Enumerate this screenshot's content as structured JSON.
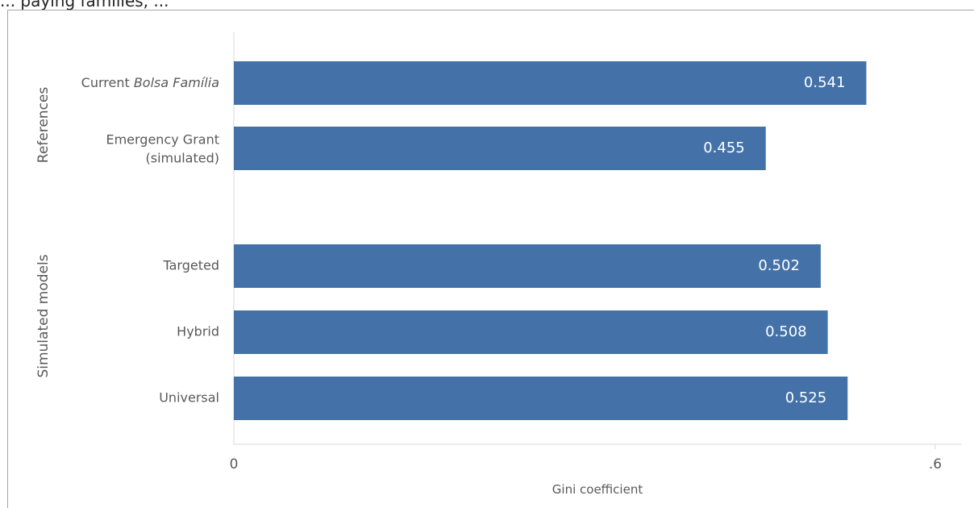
{
  "caption": "... paying families, ...",
  "chart_data": {
    "type": "bar",
    "orientation": "horizontal",
    "xlabel": "Gini coefficient",
    "xlim": [
      0,
      0.6
    ],
    "xticks": [
      {
        "value": 0,
        "label": "0"
      },
      {
        "value": 0.6,
        "label": ".6"
      }
    ],
    "groups": [
      {
        "name": "References",
        "categories": [
          {
            "label_plain": "Current ",
            "label_italic": "Bolsa Família",
            "value": 0.541,
            "display": "0.541"
          },
          {
            "label_lines": [
              "Emergency  Grant",
              "(simulated)"
            ],
            "value": 0.455,
            "display": "0.455"
          }
        ]
      },
      {
        "name": "Simulated models",
        "categories": [
          {
            "label": "Targeted",
            "value": 0.502,
            "display": "0.502"
          },
          {
            "label": "Hybrid",
            "value": 0.508,
            "display": "0.508"
          },
          {
            "label": "Universal",
            "value": 0.525,
            "display": "0.525"
          }
        ]
      }
    ],
    "bar_color": "#4472a8",
    "grid": false
  }
}
